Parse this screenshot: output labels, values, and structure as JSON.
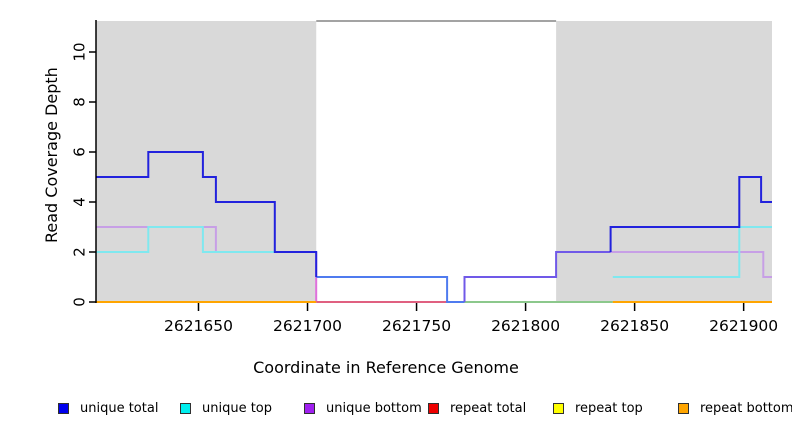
{
  "chart_data": {
    "type": "line",
    "subtype": "step",
    "title": "",
    "xlabel": "Coordinate in Reference Genome",
    "ylabel": "Read Coverage Depth",
    "xlim": [
      2621603,
      2621913
    ],
    "ylim": [
      0,
      11.3
    ],
    "x_ticks": [
      2621650,
      2621700,
      2621750,
      2621800,
      2621850,
      2621900
    ],
    "y_ticks": [
      0,
      2,
      4,
      6,
      8,
      10
    ],
    "grid": false,
    "legend_position": "bottom",
    "repeat_regions": [
      [
        2621603,
        2621704
      ],
      [
        2621814,
        2621913
      ]
    ],
    "series": [
      {
        "name": "unique total",
        "color": "#0000EE",
        "steps": [
          [
            2621603,
            5
          ],
          [
            2621627,
            6
          ],
          [
            2621652,
            5
          ],
          [
            2621658,
            4
          ],
          [
            2621685,
            2
          ],
          [
            2621704,
            1
          ],
          [
            2621764,
            0
          ],
          [
            2621772,
            1
          ],
          [
            2621814,
            2
          ],
          [
            2621839,
            3
          ],
          [
            2621898,
            5
          ],
          [
            2621908,
            4
          ],
          [
            2621913,
            4
          ]
        ]
      },
      {
        "name": "unique top",
        "color": "#00EEEE",
        "steps": [
          [
            2621603,
            2
          ],
          [
            2621627,
            3
          ],
          [
            2621652,
            2
          ],
          [
            2621704,
            1
          ],
          [
            2621764,
            0
          ],
          [
            2621840,
            1
          ],
          [
            2621898,
            3
          ],
          [
            2621913,
            3
          ]
        ]
      },
      {
        "name": "unique bottom",
        "color": "#A020F0",
        "steps": [
          [
            2621603,
            3
          ],
          [
            2621658,
            2
          ],
          [
            2621704,
            0
          ],
          [
            2621772,
            1
          ],
          [
            2621814,
            2
          ],
          [
            2621909,
            1
          ],
          [
            2621913,
            1
          ]
        ]
      },
      {
        "name": "repeat total",
        "color": "#EE0000",
        "steps": [
          [
            2621603,
            0
          ],
          [
            2621913,
            0
          ]
        ]
      },
      {
        "name": "repeat top",
        "color": "#FFFF00",
        "steps": [
          [
            2621603,
            0
          ],
          [
            2621913,
            0
          ]
        ]
      },
      {
        "name": "repeat bottom",
        "color": "#FFA500",
        "steps": [
          [
            2621603,
            0
          ],
          [
            2621913,
            0
          ]
        ]
      }
    ],
    "visible_segments": [
      {
        "name": "unique-bottom-left",
        "color": "#C79FE6",
        "points": [
          [
            2621603,
            3
          ],
          [
            2621658,
            3
          ],
          [
            2621658,
            2
          ],
          [
            2621704,
            2
          ]
        ]
      },
      {
        "name": "unique-bottom-left-drop",
        "color": "#E070DC",
        "points": [
          [
            2621704,
            2
          ],
          [
            2621704,
            0
          ]
        ]
      },
      {
        "name": "unique-top-left",
        "color": "#7FE8EF",
        "points": [
          [
            2621603,
            2
          ],
          [
            2621627,
            2
          ],
          [
            2621627,
            3
          ],
          [
            2621652,
            3
          ],
          [
            2621652,
            2
          ],
          [
            2621685,
            2
          ]
        ]
      },
      {
        "name": "zero-line-pink",
        "color": "#E06080",
        "points": [
          [
            2621704,
            0
          ],
          [
            2621764,
            0
          ]
        ]
      },
      {
        "name": "zero-line-green",
        "color": "#8CC88C",
        "points": [
          [
            2621772,
            0
          ],
          [
            2621840,
            0
          ]
        ]
      },
      {
        "name": "zero-line-orange-left",
        "color": "#FFA500",
        "points": [
          [
            2621603,
            0
          ],
          [
            2621704,
            0
          ]
        ]
      },
      {
        "name": "zero-line-orange-right",
        "color": "#FFA500",
        "points": [
          [
            2621840,
            0
          ],
          [
            2621913,
            0
          ]
        ]
      },
      {
        "name": "unique-bottom-right",
        "color": "#C79FE6",
        "points": [
          [
            2621839,
            2
          ],
          [
            2621909,
            2
          ],
          [
            2621909,
            1
          ],
          [
            2621913,
            1
          ]
        ]
      },
      {
        "name": "unique-top-right",
        "color": "#7FE8EF",
        "points": [
          [
            2621840,
            1
          ],
          [
            2621898,
            1
          ],
          [
            2621898,
            3
          ],
          [
            2621913,
            3
          ]
        ]
      },
      {
        "name": "unique-total-mid-blend",
        "color": "#4F7BEF",
        "points": [
          [
            2621704,
            1
          ],
          [
            2621764,
            1
          ],
          [
            2621764,
            0
          ],
          [
            2621772,
            0
          ]
        ]
      },
      {
        "name": "unique-total-mid-violet",
        "color": "#7059E8",
        "points": [
          [
            2621772,
            0
          ],
          [
            2621772,
            1
          ],
          [
            2621814,
            1
          ],
          [
            2621814,
            2
          ],
          [
            2621839,
            2
          ]
        ]
      },
      {
        "name": "unique-total-left",
        "color": "#2222DD",
        "points": [
          [
            2621603,
            5
          ],
          [
            2621627,
            5
          ],
          [
            2621627,
            6
          ],
          [
            2621652,
            6
          ],
          [
            2621652,
            5
          ],
          [
            2621658,
            5
          ],
          [
            2621658,
            4
          ],
          [
            2621685,
            4
          ],
          [
            2621685,
            2
          ],
          [
            2621704,
            2
          ],
          [
            2621704,
            1
          ]
        ]
      },
      {
        "name": "unique-total-right",
        "color": "#2222DD",
        "points": [
          [
            2621839,
            2
          ],
          [
            2621839,
            3
          ],
          [
            2621898,
            3
          ],
          [
            2621898,
            5
          ],
          [
            2621908,
            5
          ],
          [
            2621908,
            4
          ],
          [
            2621913,
            4
          ]
        ]
      }
    ]
  },
  "colors": {
    "repeat_region_fill": "#D9D9D9",
    "gap_top_border": "#A3A3A3",
    "axis": "#000000"
  },
  "legend": {
    "items": [
      {
        "label": "unique total",
        "color": "#0000EE"
      },
      {
        "label": "unique top",
        "color": "#00EEEE"
      },
      {
        "label": "unique bottom",
        "color": "#A020F0"
      },
      {
        "label": "repeat total",
        "color": "#EE0000"
      },
      {
        "label": "repeat top",
        "color": "#FFFF00"
      },
      {
        "label": "repeat bottom",
        "color": "#FFA500"
      }
    ]
  }
}
